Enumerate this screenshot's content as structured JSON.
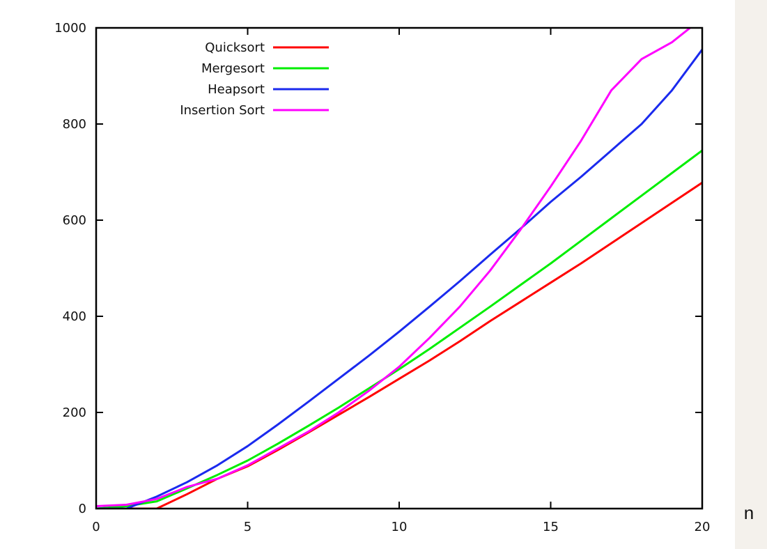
{
  "chart_data": {
    "type": "line",
    "title": "",
    "xlabel": "n",
    "ylabel": "",
    "xlim": [
      0,
      20
    ],
    "ylim": [
      0,
      1000
    ],
    "xticks": [
      0,
      5,
      10,
      15,
      20
    ],
    "yticks": [
      0,
      200,
      400,
      600,
      800,
      1000
    ],
    "grid": false,
    "legend_position": "top-left",
    "series": [
      {
        "name": "Quicksort",
        "color": "#ff0000",
        "x": [
          0,
          1,
          2,
          3,
          4,
          5,
          6,
          7,
          8,
          9,
          10,
          11,
          12,
          13,
          14,
          15,
          16,
          17,
          18,
          19,
          20
        ],
        "y": [
          0,
          0,
          0,
          30,
          62,
          88,
          122,
          158,
          195,
          232,
          270,
          308,
          348,
          390,
          430,
          470,
          510,
          552,
          594,
          636,
          678
        ]
      },
      {
        "name": "Mergesort",
        "color": "#00ee00",
        "x": [
          0,
          1,
          2,
          3,
          4,
          5,
          6,
          7,
          8,
          9,
          10,
          11,
          12,
          13,
          14,
          15,
          16,
          17,
          18,
          19,
          20
        ],
        "y": [
          0,
          5,
          15,
          42,
          70,
          100,
          135,
          172,
          210,
          250,
          290,
          332,
          376,
          420,
          465,
          510,
          557,
          604,
          651,
          698,
          745
        ]
      },
      {
        "name": "Heapsort",
        "color": "#1a2aee",
        "x": [
          0,
          1,
          2,
          3,
          4,
          5,
          6,
          7,
          8,
          9,
          10,
          11,
          12,
          13,
          14,
          15,
          16,
          17,
          18,
          19,
          20
        ],
        "y": [
          0,
          0,
          25,
          55,
          90,
          130,
          175,
          222,
          270,
          318,
          368,
          420,
          473,
          528,
          582,
          638,
          690,
          745,
          800,
          870,
          955
        ]
      },
      {
        "name": "Insertion Sort",
        "color": "#ff00ff",
        "x": [
          0,
          1,
          2,
          3,
          4,
          5,
          6,
          7,
          8,
          9,
          10,
          11,
          12,
          13,
          14,
          15,
          16,
          17,
          18,
          19,
          19.6
        ],
        "y": [
          5,
          8,
          20,
          45,
          62,
          90,
          125,
          160,
          200,
          245,
          295,
          355,
          420,
          495,
          580,
          670,
          765,
          870,
          935,
          970,
          1000
        ]
      }
    ]
  }
}
